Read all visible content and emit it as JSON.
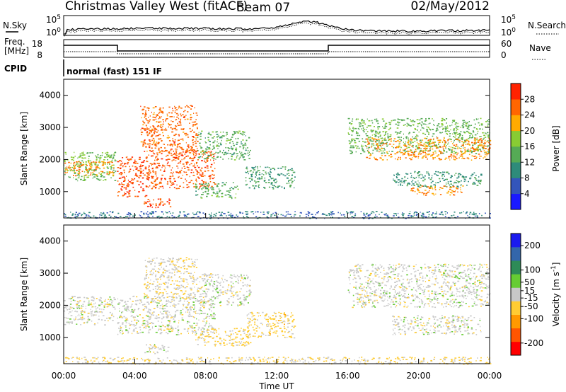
{
  "header": {
    "title": "Christmas Valley West (fitACF)",
    "beam": "Beam 07",
    "date": "02/May/2012"
  },
  "top_panels": {
    "nsky_label": "N.Sky",
    "nsearch_label": "N.Search",
    "noise_ticks": [
      "10^5",
      "10^0"
    ],
    "freq_label_1": "Freq.",
    "freq_label_2": "[MHz]",
    "freq_ticks": [
      "18",
      "8"
    ],
    "nave_label": "Nave",
    "nave_ticks": [
      "60",
      "0"
    ],
    "cpid_label": "CPID",
    "cpid_value": "normal (fast) 151 IF"
  },
  "chart_data": [
    {
      "type": "heatmap",
      "name": "power",
      "ylabel": "Slant Range [km]",
      "xlabel": "",
      "xlim": [
        0,
        24
      ],
      "ylim": [
        180,
        4500
      ],
      "yticks": [
        1000,
        2000,
        3000,
        4000
      ],
      "ytick_labels": [
        "1000",
        "2000",
        "3000",
        "4000"
      ],
      "colorbar": {
        "label": "Power [dB]",
        "range": [
          0,
          32
        ],
        "ticks": [
          4,
          8,
          12,
          16,
          20,
          24,
          28
        ],
        "tick_labels": [
          "4",
          "8",
          "12",
          "16",
          "20",
          "24",
          "28"
        ],
        "colors": [
          "#1a1aff",
          "#3355bb",
          "#2e8b7a",
          "#55aa55",
          "#88cc33",
          "#ffaa00",
          "#ff6600",
          "#ff2200"
        ]
      },
      "regions": [
        {
          "t": [
            0.0,
            2.9
          ],
          "r": [
            1350,
            2250
          ],
          "value": 16
        },
        {
          "t": [
            0.0,
            2.9
          ],
          "r": [
            1500,
            1950
          ],
          "value": 24
        },
        {
          "t": [
            3.0,
            4.6
          ],
          "r": [
            850,
            2100
          ],
          "value": 28
        },
        {
          "t": [
            4.6,
            8.5
          ],
          "r": [
            1100,
            2300
          ],
          "value": 27
        },
        {
          "t": [
            4.3,
            7.5
          ],
          "r": [
            2200,
            3700
          ],
          "value": 26
        },
        {
          "t": [
            4.5,
            6.0
          ],
          "r": [
            500,
            800
          ],
          "value": 28
        },
        {
          "t": [
            7.5,
            10.5
          ],
          "r": [
            2000,
            2900
          ],
          "value": 14
        },
        {
          "t": [
            7.4,
            9.8
          ],
          "r": [
            800,
            1300
          ],
          "value": 14
        },
        {
          "t": [
            10.2,
            13.0
          ],
          "r": [
            1100,
            1800
          ],
          "value": 12
        },
        {
          "t": [
            16.0,
            24.0
          ],
          "r": [
            2200,
            3300
          ],
          "value": 15
        },
        {
          "t": [
            17.0,
            24.0
          ],
          "r": [
            2000,
            2700
          ],
          "value": 24
        },
        {
          "t": [
            18.5,
            23.5
          ],
          "r": [
            1150,
            1650
          ],
          "value": 11
        },
        {
          "t": [
            19.5,
            22.5
          ],
          "r": [
            900,
            1200
          ],
          "value": 24
        },
        {
          "t": [
            0.0,
            24.0
          ],
          "r": [
            180,
            400
          ],
          "value": 8
        }
      ]
    },
    {
      "type": "heatmap",
      "name": "velocity",
      "ylabel": "Slant Range [km]",
      "xlabel": "Time UT",
      "xlim": [
        0,
        24
      ],
      "ylim": [
        180,
        4500
      ],
      "yticks": [
        1000,
        2000,
        3000,
        4000
      ],
      "ytick_labels": [
        "1000",
        "2000",
        "3000",
        "4000"
      ],
      "xticks": [
        0,
        4,
        8,
        12,
        16,
        20,
        24
      ],
      "xtick_labels": [
        "00:00",
        "04:00",
        "08:00",
        "12:00",
        "16:00",
        "20:00",
        "00:00"
      ],
      "colorbar": {
        "label": "Velocity [m s^-1]",
        "range": [
          -250,
          250
        ],
        "ticks": [
          -200,
          -100,
          -50,
          -15,
          15,
          50,
          100,
          200
        ],
        "tick_labels": [
          "-200",
          "-100",
          "-50",
          "-15",
          "15",
          "50",
          "100",
          "200"
        ],
        "colors": [
          "#ff0000",
          "#ff5500",
          "#ff9900",
          "#ffcc33",
          "#c8c8c8",
          "#66cc33",
          "#2e8b57",
          "#3366aa",
          "#1a1aee"
        ]
      },
      "regions": [
        {
          "t": [
            0.0,
            2.9
          ],
          "r": [
            1400,
            2300
          ],
          "value": 0
        },
        {
          "t": [
            3.0,
            8.5
          ],
          "r": [
            1100,
            2300
          ],
          "value": 0
        },
        {
          "t": [
            4.5,
            7.5
          ],
          "r": [
            2200,
            3500
          ],
          "value": -20
        },
        {
          "t": [
            4.5,
            6.0
          ],
          "r": [
            500,
            800
          ],
          "value": 0
        },
        {
          "t": [
            7.5,
            10.5
          ],
          "r": [
            2000,
            3000
          ],
          "value": 0
        },
        {
          "t": [
            7.4,
            10.5
          ],
          "r": [
            750,
            1300
          ],
          "value": -40
        },
        {
          "t": [
            10.3,
            13.0
          ],
          "r": [
            1000,
            1800
          ],
          "value": -45
        },
        {
          "t": [
            16.0,
            24.0
          ],
          "r": [
            1950,
            3300
          ],
          "value": 0
        },
        {
          "t": [
            18.5,
            23.5
          ],
          "r": [
            1100,
            1700
          ],
          "value": 0
        },
        {
          "t": [
            0.0,
            24.0
          ],
          "r": [
            180,
            400
          ],
          "value": -30
        }
      ]
    }
  ]
}
